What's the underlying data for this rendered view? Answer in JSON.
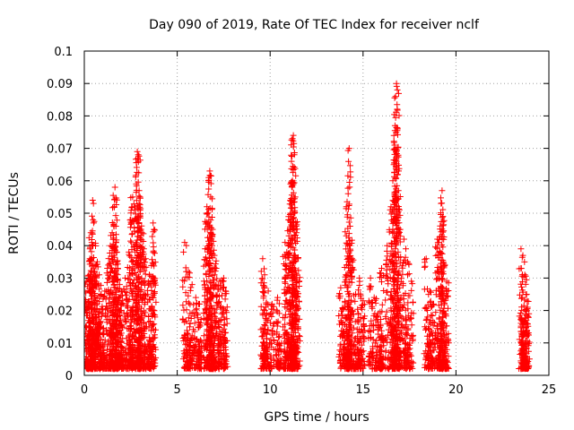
{
  "chart_data": {
    "type": "scatter",
    "title": "Day 090 of 2019, Rate Of TEC Index for receiver nclf",
    "xlabel": "GPS time / hours",
    "ylabel": "ROTI / TECUs",
    "xlim": [
      0,
      25
    ],
    "ylim": [
      0,
      0.1
    ],
    "x_ticks": [
      0,
      5,
      10,
      15,
      20,
      25
    ],
    "x_tick_labels": [
      "0",
      "5",
      "10",
      "15",
      "20",
      "25"
    ],
    "y_ticks": [
      0,
      0.01,
      0.02,
      0.03,
      0.04,
      0.05,
      0.06,
      0.07,
      0.08,
      0.09,
      0.1
    ],
    "y_tick_labels": [
      "0",
      "0.01",
      "0.02",
      "0.03",
      "0.04",
      "0.05",
      "0.06",
      "0.07",
      "0.08",
      "0.09",
      "0.1"
    ],
    "grid": true,
    "marker": "+",
    "color": "#ff0000",
    "series": [
      {
        "name": "nclf",
        "points": [
          [
            0.1,
            0.029
          ],
          [
            0.2,
            0.022
          ],
          [
            0.3,
            0.036
          ],
          [
            0.35,
            0.044
          ],
          [
            0.4,
            0.041
          ],
          [
            0.45,
            0.054
          ],
          [
            0.5,
            0.047
          ],
          [
            0.55,
            0.032
          ],
          [
            0.6,
            0.028
          ],
          [
            0.7,
            0.035
          ],
          [
            0.8,
            0.031
          ],
          [
            0.9,
            0.025
          ],
          [
            1.1,
            0.026
          ],
          [
            1.3,
            0.034
          ],
          [
            1.4,
            0.04
          ],
          [
            1.5,
            0.044
          ],
          [
            1.6,
            0.052
          ],
          [
            1.65,
            0.058
          ],
          [
            1.7,
            0.046
          ],
          [
            1.75,
            0.038
          ],
          [
            1.8,
            0.033
          ],
          [
            1.9,
            0.028
          ],
          [
            2.0,
            0.026
          ],
          [
            2.2,
            0.03
          ],
          [
            2.4,
            0.038
          ],
          [
            2.5,
            0.048
          ],
          [
            2.6,
            0.055
          ],
          [
            2.7,
            0.051
          ],
          [
            2.8,
            0.059
          ],
          [
            2.85,
            0.069
          ],
          [
            2.9,
            0.068
          ],
          [
            2.95,
            0.057
          ],
          [
            3.0,
            0.049
          ],
          [
            3.1,
            0.044
          ],
          [
            3.2,
            0.039
          ],
          [
            3.3,
            0.036
          ],
          [
            3.5,
            0.031
          ],
          [
            3.7,
            0.047
          ],
          [
            3.75,
            0.045
          ],
          [
            0.2,
            0.012
          ],
          [
            0.6,
            0.018
          ],
          [
            1.0,
            0.01
          ],
          [
            1.5,
            0.016
          ],
          [
            2.0,
            0.013
          ],
          [
            2.5,
            0.02
          ],
          [
            3.0,
            0.017
          ],
          [
            3.5,
            0.011
          ],
          [
            5.4,
            0.041
          ],
          [
            5.6,
            0.032
          ],
          [
            5.8,
            0.028
          ],
          [
            6.0,
            0.024
          ],
          [
            6.2,
            0.022
          ],
          [
            6.5,
            0.039
          ],
          [
            6.6,
            0.05
          ],
          [
            6.7,
            0.061
          ],
          [
            6.75,
            0.063
          ],
          [
            6.8,
            0.055
          ],
          [
            6.9,
            0.045
          ],
          [
            7.0,
            0.037
          ],
          [
            7.1,
            0.033
          ],
          [
            7.3,
            0.029
          ],
          [
            7.5,
            0.03
          ],
          [
            7.6,
            0.026
          ],
          [
            5.6,
            0.011
          ],
          [
            6.2,
            0.009
          ],
          [
            6.8,
            0.015
          ],
          [
            7.3,
            0.012
          ],
          [
            9.6,
            0.036
          ],
          [
            9.7,
            0.031
          ],
          [
            9.9,
            0.026
          ],
          [
            10.1,
            0.022
          ],
          [
            10.4,
            0.024
          ],
          [
            10.8,
            0.041
          ],
          [
            10.9,
            0.038
          ],
          [
            11.0,
            0.048
          ],
          [
            11.1,
            0.059
          ],
          [
            11.15,
            0.066
          ],
          [
            11.2,
            0.073
          ],
          [
            11.25,
            0.074
          ],
          [
            11.3,
            0.068
          ],
          [
            11.35,
            0.055
          ],
          [
            11.4,
            0.046
          ],
          [
            11.5,
            0.036
          ],
          [
            9.8,
            0.01
          ],
          [
            10.5,
            0.012
          ],
          [
            11.2,
            0.016
          ],
          [
            13.8,
            0.027
          ],
          [
            14.0,
            0.021
          ],
          [
            14.1,
            0.052
          ],
          [
            14.2,
            0.056
          ],
          [
            14.25,
            0.07
          ],
          [
            14.3,
            0.046
          ],
          [
            14.4,
            0.036
          ],
          [
            14.6,
            0.025
          ],
          [
            14.8,
            0.03
          ],
          [
            15.0,
            0.023
          ],
          [
            14.2,
            0.008
          ],
          [
            14.8,
            0.01
          ],
          [
            15.4,
            0.03
          ],
          [
            15.6,
            0.024
          ],
          [
            15.8,
            0.019
          ],
          [
            16.0,
            0.033
          ],
          [
            16.3,
            0.04
          ],
          [
            16.5,
            0.052
          ],
          [
            16.6,
            0.06
          ],
          [
            16.7,
            0.071
          ],
          [
            16.72,
            0.077
          ],
          [
            16.75,
            0.086
          ],
          [
            16.8,
            0.09
          ],
          [
            16.85,
            0.088
          ],
          [
            16.9,
            0.057
          ],
          [
            17.0,
            0.045
          ],
          [
            17.2,
            0.042
          ],
          [
            17.4,
            0.035
          ],
          [
            17.6,
            0.029
          ],
          [
            16.0,
            0.012
          ],
          [
            16.7,
            0.015
          ],
          [
            17.3,
            0.01
          ],
          [
            18.4,
            0.036
          ],
          [
            18.6,
            0.026
          ],
          [
            18.8,
            0.022
          ],
          [
            19.0,
            0.042
          ],
          [
            19.1,
            0.038
          ],
          [
            19.2,
            0.053
          ],
          [
            19.25,
            0.057
          ],
          [
            19.3,
            0.049
          ],
          [
            19.4,
            0.034
          ],
          [
            19.5,
            0.029
          ],
          [
            18.6,
            0.01
          ],
          [
            19.2,
            0.012
          ],
          [
            23.5,
            0.039
          ],
          [
            23.6,
            0.037
          ],
          [
            23.7,
            0.031
          ],
          [
            23.8,
            0.025
          ],
          [
            23.85,
            0.021
          ],
          [
            23.6,
            0.01
          ],
          [
            23.7,
            0.006
          ]
        ]
      }
    ]
  }
}
